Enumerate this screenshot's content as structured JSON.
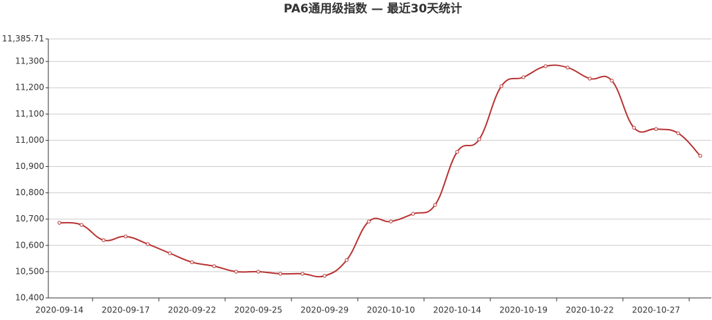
{
  "chart_data": {
    "type": "line",
    "title": "PA6通用级指数   —   最近30天统计",
    "categories": [
      "2020-09-14",
      null,
      null,
      "2020-09-17",
      null,
      null,
      "2020-09-22",
      null,
      null,
      "2020-09-25",
      null,
      null,
      "2020-09-29",
      null,
      null,
      "2020-10-10",
      null,
      null,
      "2020-10-14",
      null,
      null,
      "2020-10-19",
      null,
      null,
      "2020-10-22",
      null,
      null,
      "2020-10-27",
      null,
      null
    ],
    "values": [
      10686,
      10678,
      10620,
      10634,
      10605,
      10570,
      10536,
      10521,
      10500,
      10500,
      10492,
      10492,
      10484,
      10544,
      10691,
      10691,
      10720,
      10754,
      10956,
      11004,
      11206,
      11240,
      11282,
      11277,
      11235,
      11227,
      11048,
      11043,
      11027,
      10941
    ],
    "color": "#b83232",
    "ylim": [
      10400,
      11385.71
    ],
    "yticks": [
      {
        "value": 10400,
        "label": "10,400"
      },
      {
        "value": 10500,
        "label": "10,500"
      },
      {
        "value": 10600,
        "label": "10,600"
      },
      {
        "value": 10700,
        "label": "10,700"
      },
      {
        "value": 10800,
        "label": "10,800"
      },
      {
        "value": 10900,
        "label": "10,900"
      },
      {
        "value": 11000,
        "label": "11,000"
      },
      {
        "value": 11100,
        "label": "11,100"
      },
      {
        "value": 11200,
        "label": "11,200"
      },
      {
        "value": 11300,
        "label": "11,300"
      },
      {
        "value": 11385.71,
        "label": "11,385.71"
      }
    ],
    "grid": true
  }
}
